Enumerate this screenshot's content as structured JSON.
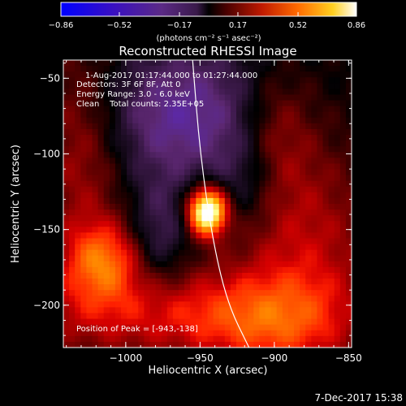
{
  "chart_data": {
    "type": "heatmap",
    "title": "Reconstructed RHESSI Image",
    "xlabel": "Heliocentric X (arcsec)",
    "ylabel": "Heliocentric Y (arcsec)",
    "xlim": [
      -1042,
      -848
    ],
    "ylim": [
      -228,
      -38
    ],
    "xticks": [
      -1000,
      -950,
      -900,
      -850
    ],
    "yticks": [
      -50,
      -100,
      -150,
      -200
    ],
    "colormap": "Hot-Cold",
    "colorbar": {
      "label": "(photons cm⁻² s⁻¹ asec⁻²)",
      "range": [
        -0.86,
        0.86
      ],
      "ticks": [
        -0.86,
        -0.52,
        -0.17,
        0.17,
        0.52,
        0.86
      ]
    },
    "info_lines": [
      "1-Aug-2017 01:17:44.000 to 01:27:44.000",
      "Detectors: 3F 6F 8F, Att 0",
      "Energy Range: 3.0 - 6.0 keV",
      "Clean    Total counts: 2.35E+05"
    ],
    "peak_text": "Position of Peak = [-943,-138]",
    "peak": {
      "x": -943,
      "y": -138,
      "value": 0.86
    },
    "sources": [
      {
        "x": -945,
        "y": -138,
        "sx": 9,
        "sy": 11,
        "amp": 0.95
      },
      {
        "x": -1015,
        "y": -170,
        "sx": 18,
        "sy": 18,
        "amp": 0.38
      },
      {
        "x": -880,
        "y": -165,
        "sx": 35,
        "sy": 55,
        "amp": 0.26
      },
      {
        "x": -1030,
        "y": -100,
        "sx": 22,
        "sy": 55,
        "amp": 0.24
      },
      {
        "x": -975,
        "y": -205,
        "sx": 75,
        "sy": 22,
        "amp": 0.3
      },
      {
        "x": -900,
        "y": -85,
        "sx": 18,
        "sy": 30,
        "amp": 0.2
      },
      {
        "x": -905,
        "y": -215,
        "sx": 35,
        "sy": 20,
        "amp": 0.18
      }
    ],
    "negatives": [
      {
        "x": -960,
        "y": -75,
        "sx": 42,
        "sy": 32,
        "amp": -0.32
      },
      {
        "x": -978,
        "y": -155,
        "sx": 14,
        "sy": 25,
        "amp": -0.18
      },
      {
        "x": -918,
        "y": -118,
        "sx": 16,
        "sy": 22,
        "amp": -0.14
      }
    ],
    "limb_curve": [
      {
        "x": -955,
        "y": -38
      },
      {
        "x": -950,
        "y": -100
      },
      {
        "x": -941,
        "y": -160
      },
      {
        "x": -931,
        "y": -200
      },
      {
        "x": -917,
        "y": -228
      }
    ]
  },
  "footer": {
    "date": "7-Dec-2017 15:38"
  },
  "colors": {
    "background": "#000000",
    "foreground": "#ffffff",
    "limb": "#ffffff"
  }
}
